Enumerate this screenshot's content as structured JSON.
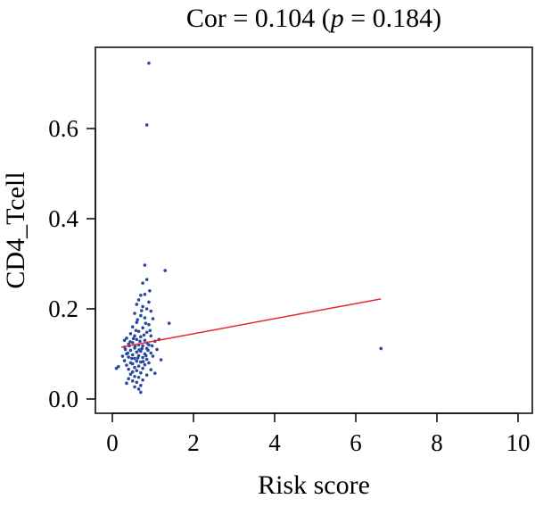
{
  "chart_data": {
    "type": "scatter",
    "title": {
      "prefix": "Cor = 0.104 (",
      "p_symbol": "p",
      "suffix": " = 0.184)"
    },
    "xlabel": "Risk score",
    "ylabel": "CD4_Tcell",
    "xlim": [
      0,
      10
    ],
    "ylim": [
      0,
      0.75
    ],
    "x_ticks": [
      0,
      2,
      4,
      6,
      8,
      10
    ],
    "y_ticks": [
      0.0,
      0.2,
      0.4,
      0.6
    ],
    "x_tick_labels": [
      "0",
      "2",
      "4",
      "6",
      "8",
      "10"
    ],
    "y_tick_labels": [
      "0.0",
      "0.2",
      "0.4",
      "0.6"
    ],
    "grid": false,
    "point_color": "#2a4aa0",
    "fit_color": "#e8262d",
    "fit_line": {
      "x": [
        0.22,
        6.62
      ],
      "y": [
        0.115,
        0.222
      ]
    },
    "points": [
      {
        "x": 0.9,
        "y": 0.745
      },
      {
        "x": 0.85,
        "y": 0.608
      },
      {
        "x": 0.8,
        "y": 0.297
      },
      {
        "x": 1.3,
        "y": 0.285
      },
      {
        "x": 0.85,
        "y": 0.265
      },
      {
        "x": 0.75,
        "y": 0.257
      },
      {
        "x": 0.92,
        "y": 0.24
      },
      {
        "x": 0.7,
        "y": 0.23
      },
      {
        "x": 0.8,
        "y": 0.232
      },
      {
        "x": 0.65,
        "y": 0.22
      },
      {
        "x": 0.9,
        "y": 0.215
      },
      {
        "x": 0.6,
        "y": 0.21
      },
      {
        "x": 0.75,
        "y": 0.205
      },
      {
        "x": 0.85,
        "y": 0.2
      },
      {
        "x": 0.95,
        "y": 0.195
      },
      {
        "x": 0.55,
        "y": 0.19
      },
      {
        "x": 0.7,
        "y": 0.185
      },
      {
        "x": 0.8,
        "y": 0.18
      },
      {
        "x": 1.0,
        "y": 0.178
      },
      {
        "x": 1.4,
        "y": 0.168
      },
      {
        "x": 0.6,
        "y": 0.17
      },
      {
        "x": 0.9,
        "y": 0.165
      },
      {
        "x": 0.5,
        "y": 0.16
      },
      {
        "x": 0.75,
        "y": 0.158
      },
      {
        "x": 0.65,
        "y": 0.15
      },
      {
        "x": 0.85,
        "y": 0.148
      },
      {
        "x": 0.45,
        "y": 0.145
      },
      {
        "x": 0.55,
        "y": 0.14
      },
      {
        "x": 0.95,
        "y": 0.14
      },
      {
        "x": 0.7,
        "y": 0.138
      },
      {
        "x": 0.35,
        "y": 0.135
      },
      {
        "x": 0.6,
        "y": 0.132
      },
      {
        "x": 0.8,
        "y": 0.13
      },
      {
        "x": 1.05,
        "y": 0.128
      },
      {
        "x": 0.5,
        "y": 0.125
      },
      {
        "x": 0.4,
        "y": 0.122
      },
      {
        "x": 0.65,
        "y": 0.12
      },
      {
        "x": 0.9,
        "y": 0.12
      },
      {
        "x": 0.75,
        "y": 0.118
      },
      {
        "x": 0.3,
        "y": 0.115
      },
      {
        "x": 0.55,
        "y": 0.113
      },
      {
        "x": 0.85,
        "y": 0.112
      },
      {
        "x": 1.1,
        "y": 0.11
      },
      {
        "x": 0.45,
        "y": 0.108
      },
      {
        "x": 0.7,
        "y": 0.106
      },
      {
        "x": 0.6,
        "y": 0.104
      },
      {
        "x": 0.95,
        "y": 0.102
      },
      {
        "x": 0.35,
        "y": 0.1
      },
      {
        "x": 0.8,
        "y": 0.1
      },
      {
        "x": 0.5,
        "y": 0.098
      },
      {
        "x": 0.65,
        "y": 0.096
      },
      {
        "x": 1.0,
        "y": 0.095
      },
      {
        "x": 0.4,
        "y": 0.093
      },
      {
        "x": 0.75,
        "y": 0.092
      },
      {
        "x": 0.55,
        "y": 0.09
      },
      {
        "x": 0.85,
        "y": 0.088
      },
      {
        "x": 1.2,
        "y": 0.087
      },
      {
        "x": 0.3,
        "y": 0.085
      },
      {
        "x": 0.6,
        "y": 0.084
      },
      {
        "x": 0.7,
        "y": 0.082
      },
      {
        "x": 0.45,
        "y": 0.08
      },
      {
        "x": 0.9,
        "y": 0.08
      },
      {
        "x": 0.5,
        "y": 0.078
      },
      {
        "x": 0.8,
        "y": 0.076
      },
      {
        "x": 0.35,
        "y": 0.075
      },
      {
        "x": 0.65,
        "y": 0.073
      },
      {
        "x": 0.15,
        "y": 0.072
      },
      {
        "x": 0.1,
        "y": 0.068
      },
      {
        "x": 0.55,
        "y": 0.07
      },
      {
        "x": 0.75,
        "y": 0.068
      },
      {
        "x": 0.4,
        "y": 0.066
      },
      {
        "x": 0.95,
        "y": 0.065
      },
      {
        "x": 0.6,
        "y": 0.063
      },
      {
        "x": 0.5,
        "y": 0.06
      },
      {
        "x": 0.7,
        "y": 0.058
      },
      {
        "x": 1.05,
        "y": 0.057
      },
      {
        "x": 0.45,
        "y": 0.055
      },
      {
        "x": 0.85,
        "y": 0.053
      },
      {
        "x": 0.55,
        "y": 0.05
      },
      {
        "x": 0.65,
        "y": 0.048
      },
      {
        "x": 0.4,
        "y": 0.045
      },
      {
        "x": 0.75,
        "y": 0.042
      },
      {
        "x": 0.5,
        "y": 0.04
      },
      {
        "x": 0.6,
        "y": 0.037
      },
      {
        "x": 0.35,
        "y": 0.035
      },
      {
        "x": 0.7,
        "y": 0.03
      },
      {
        "x": 0.55,
        "y": 0.027
      },
      {
        "x": 0.65,
        "y": 0.022
      },
      {
        "x": 0.7,
        "y": 0.015
      },
      {
        "x": 0.3,
        "y": 0.13
      },
      {
        "x": 0.42,
        "y": 0.118
      },
      {
        "x": 0.58,
        "y": 0.152
      },
      {
        "x": 0.68,
        "y": 0.128
      },
      {
        "x": 0.78,
        "y": 0.142
      },
      {
        "x": 0.88,
        "y": 0.108
      },
      {
        "x": 0.62,
        "y": 0.176
      },
      {
        "x": 0.72,
        "y": 0.196
      },
      {
        "x": 0.82,
        "y": 0.168
      },
      {
        "x": 0.52,
        "y": 0.134
      },
      {
        "x": 0.38,
        "y": 0.102
      },
      {
        "x": 0.48,
        "y": 0.09
      },
      {
        "x": 0.66,
        "y": 0.109
      },
      {
        "x": 0.76,
        "y": 0.083
      },
      {
        "x": 0.86,
        "y": 0.124
      },
      {
        "x": 0.98,
        "y": 0.118
      },
      {
        "x": 1.15,
        "y": 0.132
      },
      {
        "x": 0.25,
        "y": 0.095
      },
      {
        "x": 0.32,
        "y": 0.11
      },
      {
        "x": 0.44,
        "y": 0.127
      },
      {
        "x": 0.56,
        "y": 0.117
      },
      {
        "x": 0.63,
        "y": 0.091
      },
      {
        "x": 0.73,
        "y": 0.112
      },
      {
        "x": 0.83,
        "y": 0.096
      },
      {
        "x": 0.93,
        "y": 0.152
      },
      {
        "x": 6.62,
        "y": 0.112
      }
    ]
  }
}
